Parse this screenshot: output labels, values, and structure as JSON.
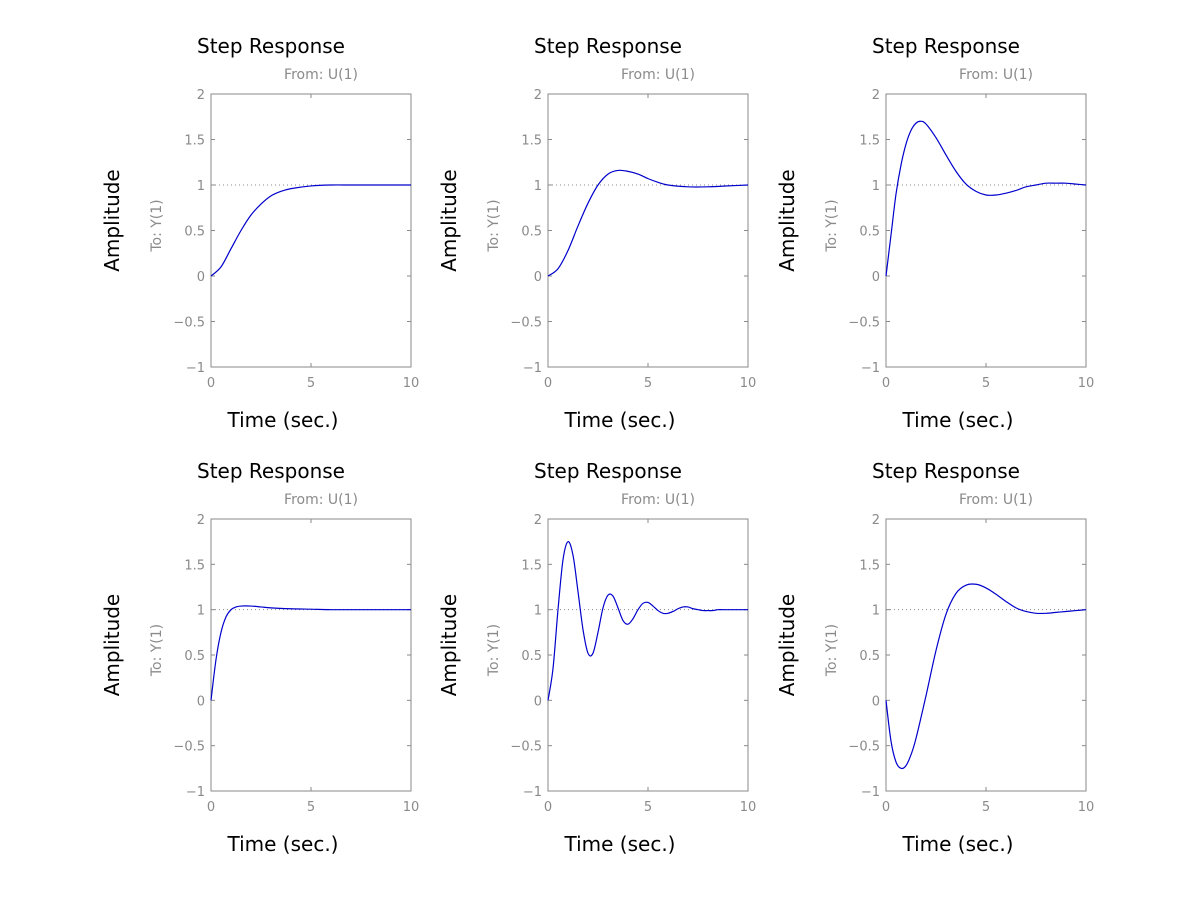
{
  "figure": {
    "background": "#ffffff",
    "curve_color": "#0000cc"
  },
  "chart_data": [
    {
      "type": "line",
      "title": "Step Response",
      "from_label": "From: U(1)",
      "to_label": "To: Y(1)",
      "xlabel": "Time (sec.)",
      "ylabel": "Amplitude",
      "xlim": [
        0,
        10
      ],
      "ylim": [
        -1,
        2
      ],
      "xticks": [
        0,
        5,
        10
      ],
      "yticks": [
        -1,
        -0.5,
        0,
        0.5,
        1,
        1.5,
        2
      ],
      "reference_y": 1,
      "series": [
        {
          "x": [
            0,
            0.5,
            1,
            1.5,
            2,
            2.5,
            3,
            3.5,
            4,
            5,
            6,
            7,
            8,
            9,
            10
          ],
          "y": [
            0,
            0.1,
            0.3,
            0.5,
            0.67,
            0.79,
            0.88,
            0.93,
            0.96,
            0.99,
            1.0,
            1.0,
            1.0,
            1.0,
            1.0
          ]
        }
      ]
    },
    {
      "type": "line",
      "title": "Step Response",
      "from_label": "From: U(1)",
      "to_label": "To: Y(1)",
      "xlabel": "Time (sec.)",
      "ylabel": "Amplitude",
      "xlim": [
        0,
        10
      ],
      "ylim": [
        -1,
        2
      ],
      "xticks": [
        0,
        5,
        10
      ],
      "yticks": [
        -1,
        -0.5,
        0,
        0.5,
        1,
        1.5,
        2
      ],
      "reference_y": 1,
      "series": [
        {
          "x": [
            0,
            0.5,
            1,
            1.5,
            2,
            2.5,
            3,
            3.5,
            4,
            4.5,
            5,
            5.5,
            6,
            7,
            8,
            9,
            10
          ],
          "y": [
            0,
            0.08,
            0.28,
            0.55,
            0.8,
            1.0,
            1.12,
            1.16,
            1.15,
            1.12,
            1.07,
            1.03,
            1.0,
            0.98,
            0.98,
            0.99,
            1.0
          ]
        }
      ]
    },
    {
      "type": "line",
      "title": "Step Response",
      "from_label": "From: U(1)",
      "to_label": "To: Y(1)",
      "xlabel": "Time (sec.)",
      "ylabel": "Amplitude",
      "xlim": [
        0,
        10
      ],
      "ylim": [
        -1,
        2
      ],
      "xticks": [
        0,
        5,
        10
      ],
      "yticks": [
        -1,
        -0.5,
        0,
        0.5,
        1,
        1.5,
        2
      ],
      "reference_y": 1,
      "series": [
        {
          "x": [
            0,
            0.25,
            0.5,
            0.75,
            1,
            1.25,
            1.5,
            1.75,
            2,
            2.5,
            3,
            3.5,
            4,
            4.5,
            5,
            5.5,
            6,
            6.5,
            7,
            7.5,
            8,
            8.5,
            9,
            9.5,
            10
          ],
          "y": [
            0,
            0.45,
            0.9,
            1.22,
            1.45,
            1.6,
            1.68,
            1.7,
            1.67,
            1.52,
            1.33,
            1.15,
            1.01,
            0.93,
            0.89,
            0.89,
            0.91,
            0.94,
            0.98,
            1.0,
            1.02,
            1.02,
            1.02,
            1.01,
            1.0
          ]
        }
      ]
    },
    {
      "type": "line",
      "title": "Step Response",
      "from_label": "From: U(1)",
      "to_label": "To: Y(1)",
      "xlabel": "Time (sec.)",
      "ylabel": "Amplitude",
      "xlim": [
        0,
        10
      ],
      "ylim": [
        -1,
        2
      ],
      "xticks": [
        0,
        5,
        10
      ],
      "yticks": [
        -1,
        -0.5,
        0,
        0.5,
        1,
        1.5,
        2
      ],
      "reference_y": 1,
      "series": [
        {
          "x": [
            0,
            0.25,
            0.5,
            0.75,
            1,
            1.25,
            1.5,
            2,
            2.5,
            3,
            4,
            5,
            6,
            7,
            8,
            9,
            10
          ],
          "y": [
            0,
            0.45,
            0.75,
            0.92,
            1.0,
            1.03,
            1.04,
            1.04,
            1.03,
            1.02,
            1.01,
            1.005,
            1.0,
            1.0,
            1.0,
            1.0,
            1.0
          ]
        }
      ]
    },
    {
      "type": "line",
      "title": "Step Response",
      "from_label": "From: U(1)",
      "to_label": "To: Y(1)",
      "xlabel": "Time (sec.)",
      "ylabel": "Amplitude",
      "xlim": [
        0,
        10
      ],
      "ylim": [
        -1,
        2
      ],
      "xticks": [
        0,
        5,
        10
      ],
      "yticks": [
        -1,
        -0.5,
        0,
        0.5,
        1,
        1.5,
        2
      ],
      "reference_y": 1,
      "series": [
        {
          "x": [
            0,
            0.25,
            0.5,
            0.75,
            1,
            1.25,
            1.5,
            1.75,
            2,
            2.25,
            2.5,
            2.75,
            3,
            3.25,
            3.5,
            3.75,
            4,
            4.25,
            4.5,
            4.75,
            5,
            5.25,
            5.5,
            5.75,
            6,
            6.25,
            6.5,
            6.75,
            7,
            7.25,
            7.5,
            7.75,
            8,
            8.25,
            8.5,
            8.75,
            9,
            9.25,
            9.5,
            9.75,
            10
          ],
          "y": [
            0,
            0.35,
            1.0,
            1.55,
            1.75,
            1.6,
            1.2,
            0.78,
            0.52,
            0.52,
            0.75,
            1.02,
            1.16,
            1.15,
            1.02,
            0.88,
            0.84,
            0.9,
            1.0,
            1.07,
            1.08,
            1.04,
            0.99,
            0.96,
            0.96,
            0.98,
            1.01,
            1.03,
            1.03,
            1.01,
            1.0,
            0.99,
            0.99,
            0.99,
            1.0,
            1.0,
            1.0,
            1.0,
            1.0,
            1.0,
            1.0
          ]
        }
      ]
    },
    {
      "type": "line",
      "title": "Step Response",
      "from_label": "From: U(1)",
      "to_label": "To: Y(1)",
      "xlabel": "Time (sec.)",
      "ylabel": "Amplitude",
      "xlim": [
        0,
        10
      ],
      "ylim": [
        -1,
        2
      ],
      "xticks": [
        0,
        5,
        10
      ],
      "yticks": [
        -1,
        -0.5,
        0,
        0.5,
        1,
        1.5,
        2
      ],
      "reference_y": 1,
      "series": [
        {
          "x": [
            0,
            0.25,
            0.5,
            0.75,
            1,
            1.25,
            1.5,
            2,
            2.5,
            3,
            3.5,
            4,
            4.5,
            5,
            5.5,
            6,
            6.5,
            7,
            7.5,
            8,
            8.5,
            9,
            9.5,
            10
          ],
          "y": [
            0,
            -0.45,
            -0.68,
            -0.75,
            -0.72,
            -0.6,
            -0.42,
            0.05,
            0.55,
            0.95,
            1.18,
            1.27,
            1.28,
            1.24,
            1.17,
            1.09,
            1.02,
            0.98,
            0.96,
            0.96,
            0.97,
            0.98,
            0.99,
            1.0
          ]
        }
      ]
    }
  ]
}
